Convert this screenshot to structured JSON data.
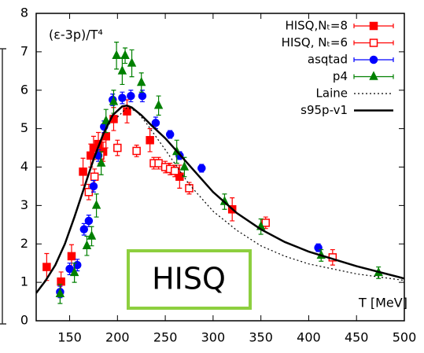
{
  "chart_data": {
    "type": "scatter",
    "annotations": [
      "(ε-3p)/T⁴",
      "T [MeV]",
      "HISQ"
    ],
    "xlim": [
      115,
      500
    ],
    "ylim": [
      0,
      8
    ],
    "xticks": [
      150,
      200,
      250,
      300,
      350,
      400,
      450,
      500
    ],
    "yticks": [
      0,
      1,
      2,
      3,
      4,
      5,
      6,
      7,
      8
    ],
    "legend": "upper right",
    "series": [
      {
        "name": "HISQ,Nₜ=8",
        "color": "#ff0000",
        "marker": "square",
        "filled": true,
        "x": [
          126,
          141,
          152,
          164,
          172,
          175,
          180,
          185,
          188,
          196,
          210,
          234,
          265,
          320
        ],
        "values": [
          1.4,
          1.02,
          1.68,
          3.88,
          4.3,
          4.5,
          4.6,
          4.4,
          4.8,
          5.25,
          5.45,
          4.7,
          3.75,
          2.9
        ],
        "errors": [
          0.35,
          0.25,
          0.3,
          0.35,
          0.3,
          0.3,
          0.3,
          0.25,
          0.3,
          0.3,
          0.3,
          0.3,
          0.3,
          0.3
        ]
      },
      {
        "name": "HISQ, Nₜ=6",
        "color": "#ff0000",
        "marker": "square",
        "filled": false,
        "x": [
          170,
          176,
          182,
          200,
          220,
          238,
          243,
          250,
          255,
          260,
          275,
          355,
          425
        ],
        "values": [
          3.35,
          3.75,
          4.3,
          4.5,
          4.42,
          4.1,
          4.1,
          4.0,
          3.95,
          3.9,
          3.45,
          2.55,
          1.65
        ],
        "errors": [
          0.2,
          0.2,
          0.2,
          0.2,
          0.15,
          0.15,
          0.15,
          0.15,
          0.15,
          0.15,
          0.15,
          0.15,
          0.2
        ]
      },
      {
        "name": "asqtad",
        "color": "#0000ff",
        "marker": "circle",
        "filled": true,
        "x": [
          140,
          150,
          158,
          165,
          170,
          175,
          180,
          186,
          195,
          205,
          214,
          226,
          240,
          255,
          265,
          288,
          410
        ],
        "values": [
          0.75,
          1.35,
          1.45,
          2.38,
          2.6,
          3.5,
          4.3,
          5.05,
          5.75,
          5.8,
          5.85,
          5.85,
          5.15,
          4.85,
          4.3,
          3.97,
          1.9
        ],
        "errors": [
          0.15,
          0.15,
          0.15,
          0.15,
          0.15,
          0.15,
          0.15,
          0.15,
          0.15,
          0.15,
          0.15,
          0.15,
          0.15,
          0.1,
          0.1,
          0.1,
          0.1
        ]
      },
      {
        "name": "p4",
        "color": "#008000",
        "marker": "triangle",
        "filled": true,
        "x": [
          140,
          155,
          168,
          173,
          178,
          183,
          188,
          196,
          199,
          205,
          208,
          215,
          225,
          243,
          262,
          270,
          312,
          350,
          413,
          473
        ],
        "values": [
          0.7,
          1.25,
          1.95,
          2.2,
          3.0,
          4.1,
          5.2,
          5.7,
          6.9,
          6.5,
          6.9,
          6.7,
          6.2,
          5.6,
          4.4,
          4.0,
          3.1,
          2.45,
          1.7,
          1.25
        ],
        "errors": [
          0.25,
          0.25,
          0.25,
          0.25,
          0.3,
          0.3,
          0.3,
          0.3,
          0.35,
          0.35,
          0.2,
          0.35,
          0.25,
          0.25,
          0.3,
          0.25,
          0.2,
          0.2,
          0.15,
          0.15
        ]
      },
      {
        "name": "Laine",
        "color": "#000000",
        "line_style": "dotted",
        "x": [
          200,
          210,
          220,
          230,
          250,
          275,
          300,
          325,
          350,
          375,
          400,
          450,
          500
        ],
        "values": [
          5.3,
          5.55,
          5.45,
          5.15,
          4.45,
          3.55,
          2.85,
          2.35,
          1.95,
          1.68,
          1.48,
          1.22,
          1.05
        ]
      },
      {
        "name": "s95p-v1",
        "color": "#000000",
        "line_style": "solid",
        "x": [
          115,
          125,
          135,
          145,
          155,
          165,
          175,
          185,
          195,
          205,
          210,
          215,
          225,
          235,
          250,
          275,
          300,
          325,
          350,
          375,
          400,
          450,
          500
        ],
        "values": [
          0.72,
          1.05,
          1.45,
          2.0,
          2.7,
          3.45,
          4.2,
          4.85,
          5.35,
          5.58,
          5.6,
          5.55,
          5.35,
          5.1,
          4.75,
          4.05,
          3.35,
          2.8,
          2.38,
          2.05,
          1.8,
          1.42,
          1.1
        ]
      }
    ]
  }
}
